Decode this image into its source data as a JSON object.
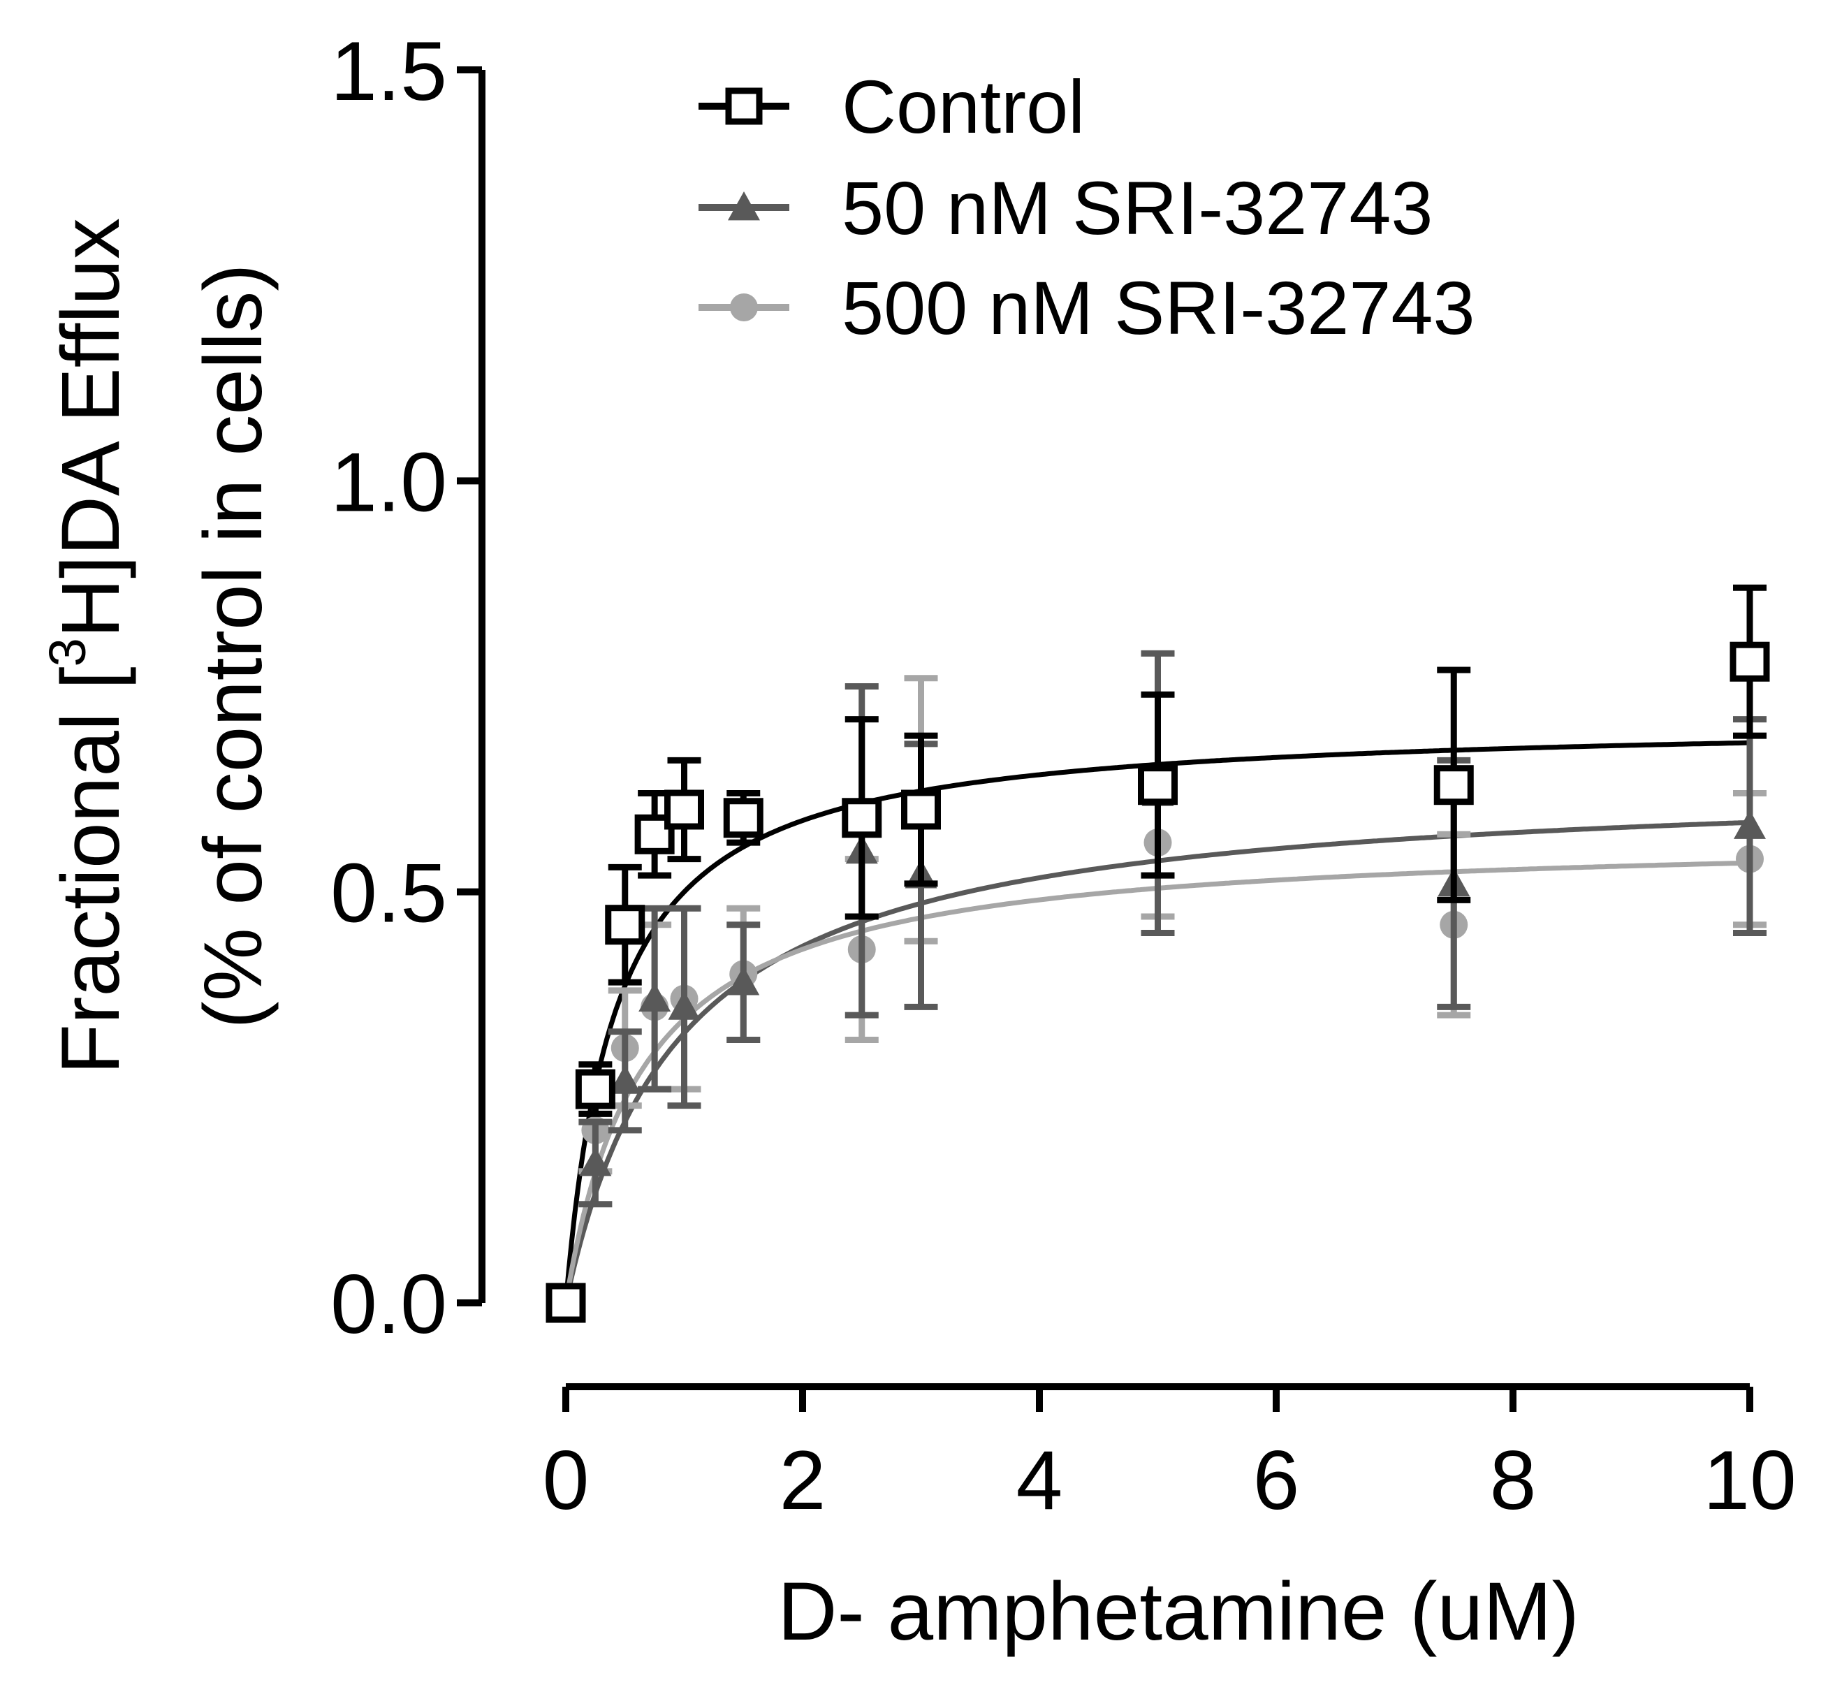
{
  "chart_data": {
    "type": "scatter",
    "title": "",
    "xlabel": "D- amphetamine (uM)",
    "ylabel_line1": {
      "pre": "Fractional [",
      "sup": "3",
      "post": "H]DA Efflux"
    },
    "ylabel_line2": "(% of control in cells)",
    "xlim": [
      0,
      10
    ],
    "ylim": [
      0,
      1.5
    ],
    "x_ticks": [
      0,
      2,
      4,
      6,
      8,
      10
    ],
    "x_tick_labels": [
      "0",
      "2",
      "4",
      "6",
      "8",
      "10"
    ],
    "y_ticks": [
      0,
      0.5,
      1.0,
      1.5
    ],
    "y_tick_labels": [
      "0.0",
      "0.5",
      "1.0",
      "1.5"
    ],
    "grid": false,
    "legend_position": "top",
    "fit": "hyperbolic (Michaelis-Menten) curve per series",
    "series": [
      {
        "name": "Control",
        "color": "#000000",
        "marker": "open-square",
        "x": [
          0,
          0.25,
          0.5,
          0.75,
          1.0,
          1.5,
          2.5,
          3.0,
          5.0,
          7.5,
          10.0
        ],
        "y": [
          0.0,
          0.26,
          0.46,
          0.57,
          0.6,
          0.59,
          0.59,
          0.6,
          0.63,
          0.63,
          0.78
        ],
        "err": [
          0,
          0.03,
          0.07,
          0.05,
          0.06,
          0.03,
          0.12,
          0.09,
          0.11,
          0.14,
          0.09
        ],
        "fit_vmax": 0.71,
        "fit_km": 0.42
      },
      {
        "name": "50 nM SRI-32743",
        "color": "#595959",
        "marker": "filled-triangle",
        "x": [
          0.25,
          0.5,
          0.75,
          1.0,
          1.5,
          2.5,
          3.0,
          5.0,
          7.5,
          10.0
        ],
        "y": [
          0.17,
          0.27,
          0.37,
          0.36,
          0.39,
          0.55,
          0.52,
          0.62,
          0.51,
          0.58
        ],
        "err": [
          0.05,
          0.06,
          0.11,
          0.12,
          0.07,
          0.2,
          0.16,
          0.17,
          0.15,
          0.13
        ],
        "fit_vmax": 0.64,
        "fit_km": 0.95
      },
      {
        "name": "500 nM SRI-32743",
        "color": "#a6a6a6",
        "marker": "filled-circle",
        "x": [
          0.25,
          0.5,
          0.75,
          1.0,
          1.5,
          2.5,
          3.0,
          5.0,
          7.5,
          10.0
        ],
        "y": [
          0.21,
          0.31,
          0.36,
          0.37,
          0.4,
          0.43,
          0.6,
          0.56,
          0.46,
          0.54
        ],
        "err": [
          0.05,
          0.07,
          0.1,
          0.11,
          0.08,
          0.11,
          0.16,
          0.09,
          0.11,
          0.08
        ],
        "fit_vmax": 0.57,
        "fit_km": 0.65
      }
    ]
  }
}
